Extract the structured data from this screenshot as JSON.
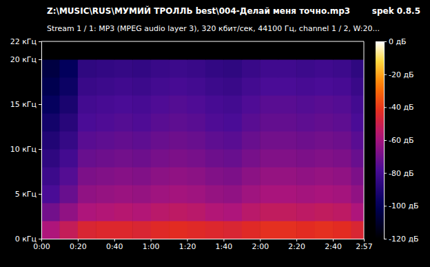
{
  "chart_data": {
    "type": "heatmap",
    "title": "Z:\\MUSIC\\RUS\\МУМИЙ ТРОЛЛЬ best\\004-Делай меня точно.mp3",
    "subtitle": "Stream 1 / 1: MP3 (MPEG audio layer 3), 320 кбит/сек, 44100 Гц, channel 1 / 2, W:20...",
    "annotation": "spek 0.8.5",
    "xlim": [
      0,
      177
    ],
    "xticks": [
      {
        "value": 0,
        "label": "0:00"
      },
      {
        "value": 20,
        "label": "0:20"
      },
      {
        "value": 40,
        "label": "0:40"
      },
      {
        "value": 60,
        "label": "1:00"
      },
      {
        "value": 80,
        "label": "1:20"
      },
      {
        "value": 100,
        "label": "1:40"
      },
      {
        "value": 120,
        "label": "2:00"
      },
      {
        "value": 140,
        "label": "2:20"
      },
      {
        "value": 160,
        "label": "2:40"
      },
      {
        "value": 177,
        "label": "2:57"
      }
    ],
    "ylim": [
      0,
      22
    ],
    "yticks": [
      {
        "value": 0,
        "label": "0 кГц"
      },
      {
        "value": 5,
        "label": "5 кГц"
      },
      {
        "value": 10,
        "label": "10 кГц"
      },
      {
        "value": 15,
        "label": "15 кГц"
      },
      {
        "value": 20,
        "label": "20 кГц"
      },
      {
        "value": 22,
        "label": "22 кГц"
      }
    ],
    "x_bins": [
      0,
      10,
      20,
      30,
      40,
      50,
      60,
      70,
      80,
      90,
      100,
      110,
      120,
      130,
      140,
      150,
      160,
      170,
      177
    ],
    "y_bins": [
      0,
      2,
      4,
      6,
      8,
      10,
      12,
      14,
      16,
      18,
      20,
      22
    ],
    "cells": [
      [
        -58,
        -52,
        -46,
        -45,
        -45,
        -46,
        -44,
        -43,
        -44,
        -45,
        -46,
        -44,
        -42,
        -42,
        -43,
        -42,
        -43,
        -46
      ],
      [
        -70,
        -64,
        -58,
        -57,
        -56,
        -57,
        -55,
        -54,
        -55,
        -57,
        -58,
        -55,
        -53,
        -53,
        -54,
        -53,
        -54,
        -58
      ],
      [
        -78,
        -72,
        -64,
        -63,
        -62,
        -63,
        -61,
        -60,
        -61,
        -63,
        -64,
        -61,
        -59,
        -59,
        -60,
        -59,
        -60,
        -64
      ],
      [
        -82,
        -76,
        -68,
        -67,
        -66,
        -67,
        -65,
        -64,
        -65,
        -67,
        -68,
        -65,
        -63,
        -63,
        -64,
        -63,
        -64,
        -68
      ],
      [
        -86,
        -80,
        -72,
        -71,
        -70,
        -71,
        -69,
        -68,
        -69,
        -71,
        -72,
        -69,
        -67,
        -67,
        -68,
        -67,
        -68,
        -72
      ],
      [
        -90,
        -84,
        -75,
        -74,
        -73,
        -74,
        -72,
        -71,
        -72,
        -74,
        -75,
        -72,
        -70,
        -70,
        -71,
        -70,
        -71,
        -75
      ],
      [
        -94,
        -88,
        -78,
        -77,
        -76,
        -77,
        -75,
        -74,
        -75,
        -77,
        -78,
        -75,
        -73,
        -73,
        -74,
        -73,
        -74,
        -78
      ],
      [
        -98,
        -92,
        -80,
        -79,
        -78,
        -79,
        -77,
        -76,
        -77,
        -79,
        -80,
        -77,
        -75,
        -75,
        -76,
        -75,
        -76,
        -80
      ],
      [
        -102,
        -96,
        -83,
        -82,
        -81,
        -82,
        -80,
        -79,
        -80,
        -82,
        -83,
        -80,
        -78,
        -78,
        -79,
        -78,
        -79,
        -83
      ],
      [
        -105,
        -99,
        -86,
        -85,
        -84,
        -85,
        -83,
        -82,
        -83,
        -85,
        -86,
        -83,
        -81,
        -81,
        -82,
        -81,
        -82,
        -86
      ],
      [
        -120,
        -120,
        -120,
        -120,
        -120,
        -120,
        -120,
        -120,
        -120,
        -120,
        -120,
        -120,
        -120,
        -120,
        -120,
        -120,
        -120,
        -120
      ]
    ],
    "colorbar": {
      "range": [
        -120,
        0
      ],
      "ticks": [
        {
          "value": 0,
          "label": "0 дБ"
        },
        {
          "value": -20,
          "label": "-20 дБ"
        },
        {
          "value": -40,
          "label": "-40 дБ"
        },
        {
          "value": -60,
          "label": "-60 дБ"
        },
        {
          "value": -80,
          "label": "-80 дБ"
        },
        {
          "value": -100,
          "label": "-100 дБ"
        },
        {
          "value": -120,
          "label": "-120 дБ"
        }
      ]
    }
  }
}
